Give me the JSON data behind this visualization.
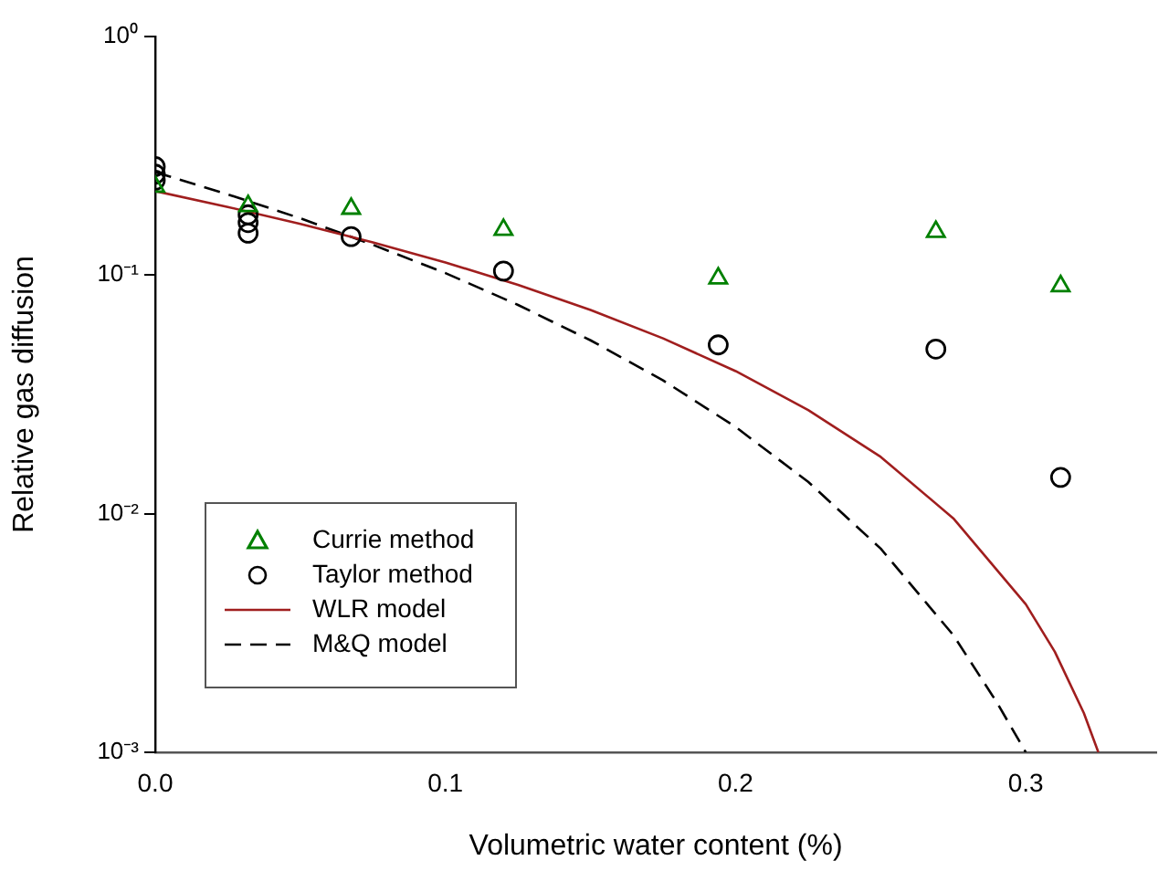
{
  "chart_data": {
    "type": "scatter",
    "xlabel": "Volumetric water content (%)",
    "ylabel": "Relative gas diffusion",
    "log": "y",
    "xlim": [
      0,
      0.345
    ],
    "xticks": [
      {
        "value": 0,
        "label": "0.0"
      },
      0.1,
      0.2,
      0.3
    ],
    "ylim": [
      0.001,
      1
    ],
    "yticks": [
      {
        "value": 0.001,
        "label": "10⁻³"
      },
      {
        "value": 0.01,
        "label": "10⁻²"
      },
      {
        "value": 0.1,
        "label": "10⁻¹"
      },
      {
        "value": 1,
        "label": "10⁰"
      }
    ],
    "grid": false,
    "legend": "bottom left",
    "series": [
      {
        "name": "Currie method",
        "type": "scatter",
        "marker": "triangle",
        "color": "#008000",
        "x": [
          0,
          0.032,
          0.0675,
          0.12,
          0.194,
          0.269,
          0.312
        ],
        "values": [
          0.235,
          0.195,
          0.19,
          0.155,
          0.097,
          0.152,
          0.09
        ]
      },
      {
        "name": "Taylor method",
        "type": "scatter",
        "marker": "circle",
        "color": "#000000",
        "x": [
          0,
          0,
          0,
          0.032,
          0.032,
          0.032,
          0.0675,
          0.12,
          0.194,
          0.269,
          0.312
        ],
        "values": [
          0.285,
          0.265,
          0.25,
          0.179,
          0.166,
          0.15,
          0.145,
          0.104,
          0.051,
          0.049,
          0.0142
        ]
      },
      {
        "name": "WLR model",
        "type": "line",
        "line_style": "solid",
        "color": "#a01e1e",
        "x": [
          0,
          0.025,
          0.05,
          0.075,
          0.1,
          0.125,
          0.15,
          0.175,
          0.2,
          0.225,
          0.25,
          0.275,
          0.3,
          0.31,
          0.32,
          0.325
        ],
        "values": [
          0.225,
          0.193,
          0.164,
          0.137,
          0.113,
          0.091,
          0.0714,
          0.0543,
          0.0396,
          0.0272,
          0.0173,
          0.00957,
          0.00417,
          0.00264,
          0.00146,
          0.001
        ]
      },
      {
        "name": "M&Q model",
        "type": "line",
        "line_style": "dashed",
        "color": "#000000",
        "x": [
          0,
          0.025,
          0.05,
          0.075,
          0.1,
          0.125,
          0.15,
          0.175,
          0.2,
          0.225,
          0.25,
          0.275,
          0.29,
          0.3
        ],
        "values": [
          0.27,
          0.218,
          0.173,
          0.134,
          0.102,
          0.075,
          0.0533,
          0.0362,
          0.0231,
          0.0136,
          0.00714,
          0.0031,
          0.00162,
          0.001
        ]
      }
    ]
  }
}
